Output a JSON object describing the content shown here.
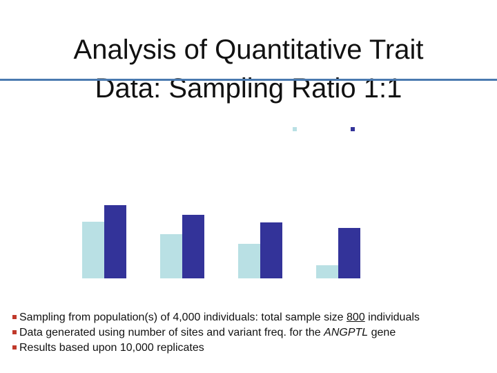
{
  "chart_data": {
    "type": "bar",
    "title": "Analysis of Quantitative Trait Data: Sampling Ratio 1:1",
    "categories": [
      null,
      null,
      null,
      null
    ],
    "series": [
      {
        "color": "#b9e0e4",
        "values": [
          82,
          64,
          50,
          19
        ]
      },
      {
        "color": "#333399",
        "values": [
          106,
          92,
          81,
          73
        ]
      }
    ],
    "ylim": [
      0,
      110
    ]
  },
  "bullets": [
    [
      "Sampling from population(s) of 4,000 individuals: total sample size ",
      "800",
      " individuals"
    ],
    [
      "Data generated using number of sites and variant freq. for the ",
      "ANGPTL",
      " gene"
    ],
    [
      "Results based upon 10,000 replicates"
    ]
  ]
}
